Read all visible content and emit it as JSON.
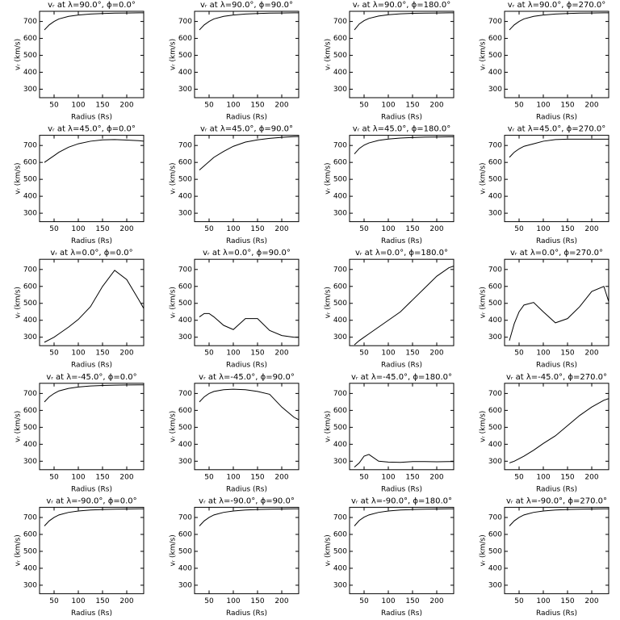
{
  "chart_data": [
    {
      "type": "line",
      "title": "vᵣ at λ=90.0°, ϕ=0.0°",
      "x_label": "Radius (Rs)",
      "y_label": "vᵣ (km/s)",
      "x": [
        30,
        40,
        50,
        60,
        80,
        100,
        125,
        150,
        175,
        200,
        225,
        235
      ],
      "values": [
        650,
        680,
        700,
        715,
        730,
        738,
        744,
        747,
        749,
        750,
        751,
        751
      ],
      "xlim": [
        20,
        235
      ],
      "ylim": [
        250,
        760
      ],
      "xticks": [
        50,
        100,
        150,
        200
      ],
      "yticks": [
        300,
        400,
        500,
        600,
        700
      ],
      "color": "#000000"
    },
    {
      "type": "line",
      "title": "vᵣ at λ=90.0°, ϕ=90.0°",
      "x_label": "Radius (Rs)",
      "y_label": "vᵣ (km/s)",
      "x": [
        30,
        40,
        50,
        60,
        80,
        100,
        125,
        150,
        175,
        200,
        225,
        235
      ],
      "values": [
        650,
        680,
        700,
        715,
        730,
        738,
        744,
        747,
        749,
        750,
        751,
        751
      ],
      "xlim": [
        20,
        235
      ],
      "ylim": [
        250,
        760
      ],
      "xticks": [
        50,
        100,
        150,
        200
      ],
      "yticks": [
        300,
        400,
        500,
        600,
        700
      ],
      "color": "#000000"
    },
    {
      "type": "line",
      "title": "vᵣ at λ=90.0°, ϕ=180.0°",
      "x_label": "Radius (Rs)",
      "y_label": "vᵣ (km/s)",
      "x": [
        30,
        40,
        50,
        60,
        80,
        100,
        125,
        150,
        175,
        200,
        225,
        235
      ],
      "values": [
        650,
        685,
        705,
        718,
        732,
        740,
        745,
        748,
        749,
        750,
        751,
        751
      ],
      "xlim": [
        20,
        235
      ],
      "ylim": [
        250,
        760
      ],
      "xticks": [
        50,
        100,
        150,
        200
      ],
      "yticks": [
        300,
        400,
        500,
        600,
        700
      ],
      "color": "#000000"
    },
    {
      "type": "line",
      "title": "vᵣ at λ=90.0°, ϕ=270.0°",
      "x_label": "Radius (Rs)",
      "y_label": "vᵣ (km/s)",
      "x": [
        30,
        40,
        50,
        60,
        80,
        100,
        125,
        150,
        175,
        200,
        225,
        235
      ],
      "values": [
        650,
        680,
        700,
        715,
        730,
        738,
        744,
        747,
        749,
        750,
        751,
        751
      ],
      "xlim": [
        20,
        235
      ],
      "ylim": [
        250,
        760
      ],
      "xticks": [
        50,
        100,
        150,
        200
      ],
      "yticks": [
        300,
        400,
        500,
        600,
        700
      ],
      "color": "#000000"
    },
    {
      "type": "line",
      "title": "vᵣ at λ=45.0°, ϕ=0.0°",
      "x_label": "Radius (Rs)",
      "y_label": "vᵣ (km/s)",
      "x": [
        30,
        40,
        50,
        60,
        80,
        100,
        125,
        150,
        175,
        200,
        225,
        235
      ],
      "values": [
        600,
        620,
        640,
        660,
        690,
        710,
        725,
        733,
        735,
        732,
        728,
        725
      ],
      "xlim": [
        20,
        235
      ],
      "ylim": [
        250,
        760
      ],
      "xticks": [
        50,
        100,
        150,
        200
      ],
      "yticks": [
        300,
        400,
        500,
        600,
        700
      ],
      "color": "#000000"
    },
    {
      "type": "line",
      "title": "vᵣ at λ=45.0°, ϕ=90.0°",
      "x_label": "Radius (Rs)",
      "y_label": "vᵣ (km/s)",
      "x": [
        30,
        40,
        50,
        60,
        80,
        100,
        125,
        150,
        175,
        200,
        225,
        235
      ],
      "values": [
        555,
        580,
        605,
        630,
        665,
        695,
        720,
        733,
        742,
        748,
        752,
        753
      ],
      "xlim": [
        20,
        235
      ],
      "ylim": [
        250,
        760
      ],
      "xticks": [
        50,
        100,
        150,
        200
      ],
      "yticks": [
        300,
        400,
        500,
        600,
        700
      ],
      "color": "#000000"
    },
    {
      "type": "line",
      "title": "vᵣ at λ=45.0°, ϕ=180.0°",
      "x_label": "Radius (Rs)",
      "y_label": "vᵣ (km/s)",
      "x": [
        30,
        40,
        50,
        60,
        80,
        100,
        125,
        150,
        175,
        200,
        225,
        235
      ],
      "values": [
        650,
        682,
        702,
        715,
        730,
        738,
        744,
        747,
        749,
        750,
        751,
        751
      ],
      "xlim": [
        20,
        235
      ],
      "ylim": [
        250,
        760
      ],
      "xticks": [
        50,
        100,
        150,
        200
      ],
      "yticks": [
        300,
        400,
        500,
        600,
        700
      ],
      "color": "#000000"
    },
    {
      "type": "line",
      "title": "vᵣ at λ=45.0°, ϕ=270.0°",
      "x_label": "Radius (Rs)",
      "y_label": "vᵣ (km/s)",
      "x": [
        30,
        40,
        50,
        60,
        80,
        100,
        125,
        150,
        175,
        200,
        225,
        235
      ],
      "values": [
        630,
        660,
        680,
        695,
        710,
        725,
        735,
        737,
        737,
        737,
        737,
        737
      ],
      "xlim": [
        20,
        235
      ],
      "ylim": [
        250,
        760
      ],
      "xticks": [
        50,
        100,
        150,
        200
      ],
      "yticks": [
        300,
        400,
        500,
        600,
        700
      ],
      "color": "#000000"
    },
    {
      "type": "line",
      "title": "vᵣ at λ=0.0°, ϕ=0.0°",
      "x_label": "Radius (Rs)",
      "y_label": "vᵣ (km/s)",
      "x": [
        30,
        40,
        50,
        60,
        80,
        100,
        125,
        150,
        175,
        200,
        225,
        235
      ],
      "values": [
        270,
        285,
        300,
        320,
        360,
        405,
        480,
        600,
        695,
        640,
        520,
        470
      ],
      "xlim": [
        20,
        235
      ],
      "ylim": [
        250,
        760
      ],
      "xticks": [
        50,
        100,
        150,
        200
      ],
      "yticks": [
        300,
        400,
        500,
        600,
        700
      ],
      "color": "#000000"
    },
    {
      "type": "line",
      "title": "vᵣ at λ=0.0°, ϕ=90.0°",
      "x_label": "Radius (Rs)",
      "y_label": "vᵣ (km/s)",
      "x": [
        30,
        40,
        50,
        60,
        80,
        100,
        125,
        150,
        175,
        200,
        225,
        235
      ],
      "values": [
        420,
        440,
        440,
        420,
        370,
        345,
        410,
        410,
        340,
        310,
        300,
        300
      ],
      "xlim": [
        20,
        235
      ],
      "ylim": [
        250,
        760
      ],
      "xticks": [
        50,
        100,
        150,
        200
      ],
      "yticks": [
        300,
        400,
        500,
        600,
        700
      ],
      "color": "#000000"
    },
    {
      "type": "line",
      "title": "vᵣ at λ=0.0°, ϕ=180.0°",
      "x_label": "Radius (Rs)",
      "y_label": "vᵣ (km/s)",
      "x": [
        30,
        40,
        50,
        60,
        80,
        100,
        125,
        150,
        175,
        200,
        225,
        235
      ],
      "values": [
        255,
        280,
        300,
        320,
        360,
        400,
        450,
        520,
        590,
        660,
        710,
        720
      ],
      "xlim": [
        20,
        235
      ],
      "ylim": [
        250,
        760
      ],
      "xticks": [
        50,
        100,
        150,
        200
      ],
      "yticks": [
        300,
        400,
        500,
        600,
        700
      ],
      "color": "#000000"
    },
    {
      "type": "line",
      "title": "vᵣ at λ=0.0°, ϕ=270.0°",
      "x_label": "Radius (Rs)",
      "y_label": "vᵣ (km/s)",
      "x": [
        30,
        40,
        50,
        60,
        80,
        100,
        125,
        150,
        175,
        200,
        225,
        235
      ],
      "values": [
        280,
        380,
        450,
        490,
        505,
        450,
        385,
        410,
        480,
        570,
        600,
        510
      ],
      "xlim": [
        20,
        235
      ],
      "ylim": [
        250,
        760
      ],
      "xticks": [
        50,
        100,
        150,
        200
      ],
      "yticks": [
        300,
        400,
        500,
        600,
        700
      ],
      "color": "#000000"
    },
    {
      "type": "line",
      "title": "vᵣ at λ=-45.0°, ϕ=0.0°",
      "x_label": "Radius (Rs)",
      "y_label": "vᵣ (km/s)",
      "x": [
        30,
        40,
        50,
        60,
        80,
        100,
        125,
        150,
        175,
        200,
        225,
        235
      ],
      "values": [
        650,
        680,
        700,
        715,
        730,
        738,
        744,
        747,
        749,
        750,
        751,
        751
      ],
      "xlim": [
        20,
        235
      ],
      "ylim": [
        250,
        760
      ],
      "xticks": [
        50,
        100,
        150,
        200
      ],
      "yticks": [
        300,
        400,
        500,
        600,
        700
      ],
      "color": "#000000"
    },
    {
      "type": "line",
      "title": "vᵣ at λ=-45.0°, ϕ=90.0°",
      "x_label": "Radius (Rs)",
      "y_label": "vᵣ (km/s)",
      "x": [
        30,
        40,
        50,
        60,
        80,
        100,
        125,
        150,
        175,
        200,
        225,
        235
      ],
      "values": [
        650,
        680,
        700,
        712,
        722,
        725,
        722,
        712,
        695,
        620,
        560,
        545
      ],
      "xlim": [
        20,
        235
      ],
      "ylim": [
        250,
        760
      ],
      "xticks": [
        50,
        100,
        150,
        200
      ],
      "yticks": [
        300,
        400,
        500,
        600,
        700
      ],
      "color": "#000000"
    },
    {
      "type": "line",
      "title": "vᵣ at λ=-45.0°, ϕ=180.0°",
      "x_label": "Radius (Rs)",
      "y_label": "vᵣ (km/s)",
      "x": [
        30,
        40,
        50,
        60,
        80,
        100,
        125,
        150,
        175,
        200,
        225,
        235
      ],
      "values": [
        265,
        290,
        330,
        340,
        300,
        295,
        293,
        298,
        298,
        297,
        298,
        298
      ],
      "xlim": [
        20,
        235
      ],
      "ylim": [
        250,
        760
      ],
      "xticks": [
        50,
        100,
        150,
        200
      ],
      "yticks": [
        300,
        400,
        500,
        600,
        700
      ],
      "color": "#000000"
    },
    {
      "type": "line",
      "title": "vᵣ at λ=-45.0°, ϕ=270.0°",
      "x_label": "Radius (Rs)",
      "y_label": "vᵣ (km/s)",
      "x": [
        30,
        40,
        50,
        60,
        80,
        100,
        125,
        150,
        175,
        200,
        225,
        235
      ],
      "values": [
        290,
        300,
        315,
        330,
        365,
        405,
        450,
        510,
        570,
        620,
        660,
        670
      ],
      "xlim": [
        20,
        235
      ],
      "ylim": [
        250,
        760
      ],
      "xticks": [
        50,
        100,
        150,
        200
      ],
      "yticks": [
        300,
        400,
        500,
        600,
        700
      ],
      "color": "#000000"
    },
    {
      "type": "line",
      "title": "vᵣ at λ=-90.0°, ϕ=0.0°",
      "x_label": "Radius (Rs)",
      "y_label": "vᵣ (km/s)",
      "x": [
        30,
        40,
        50,
        60,
        80,
        100,
        125,
        150,
        175,
        200,
        225,
        235
      ],
      "values": [
        650,
        680,
        700,
        715,
        730,
        738,
        744,
        747,
        749,
        750,
        751,
        751
      ],
      "xlim": [
        20,
        235
      ],
      "ylim": [
        250,
        760
      ],
      "xticks": [
        50,
        100,
        150,
        200
      ],
      "yticks": [
        300,
        400,
        500,
        600,
        700
      ],
      "color": "#000000"
    },
    {
      "type": "line",
      "title": "vᵣ at λ=-90.0°, ϕ=90.0°",
      "x_label": "Radius (Rs)",
      "y_label": "vᵣ (km/s)",
      "x": [
        30,
        40,
        50,
        60,
        80,
        100,
        125,
        150,
        175,
        200,
        225,
        235
      ],
      "values": [
        650,
        680,
        700,
        715,
        730,
        738,
        744,
        747,
        749,
        750,
        751,
        751
      ],
      "xlim": [
        20,
        235
      ],
      "ylim": [
        250,
        760
      ],
      "xticks": [
        50,
        100,
        150,
        200
      ],
      "yticks": [
        300,
        400,
        500,
        600,
        700
      ],
      "color": "#000000"
    },
    {
      "type": "line",
      "title": "vᵣ at λ=-90.0°, ϕ=180.0°",
      "x_label": "Radius (Rs)",
      "y_label": "vᵣ (km/s)",
      "x": [
        30,
        40,
        50,
        60,
        80,
        100,
        125,
        150,
        175,
        200,
        225,
        235
      ],
      "values": [
        650,
        682,
        702,
        715,
        730,
        738,
        744,
        747,
        749,
        750,
        751,
        751
      ],
      "xlim": [
        20,
        235
      ],
      "ylim": [
        250,
        760
      ],
      "xticks": [
        50,
        100,
        150,
        200
      ],
      "yticks": [
        300,
        400,
        500,
        600,
        700
      ],
      "color": "#000000"
    },
    {
      "type": "line",
      "title": "vᵣ at λ=-90.0°, ϕ=270.0°",
      "x_label": "Radius (Rs)",
      "y_label": "vᵣ (km/s)",
      "x": [
        30,
        40,
        50,
        60,
        80,
        100,
        125,
        150,
        175,
        200,
        225,
        235
      ],
      "values": [
        650,
        680,
        700,
        715,
        730,
        738,
        744,
        747,
        749,
        750,
        751,
        751
      ],
      "xlim": [
        20,
        235
      ],
      "ylim": [
        250,
        760
      ],
      "xticks": [
        50,
        100,
        150,
        200
      ],
      "yticks": [
        300,
        400,
        500,
        600,
        700
      ],
      "color": "#000000"
    }
  ]
}
